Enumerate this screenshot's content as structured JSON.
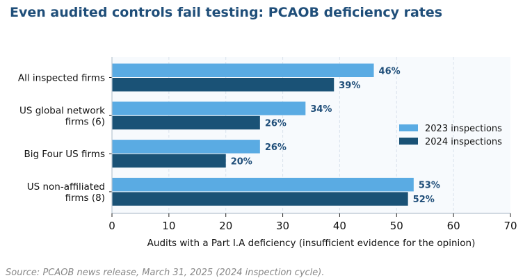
{
  "title": "Even audited controls fail testing: PCAOB deficiency rates",
  "source": "Source: PCAOB news release, March 31, 2025 (2024 inspection cycle).",
  "colors": {
    "title": "#1f4e79",
    "series_2023": "#5aabe3",
    "series_2024": "#1a5276",
    "value_label": "#1f4e79",
    "plot_bg": "#f7fafd",
    "grid": "#d9e2ec",
    "axis": "#b8c4d0",
    "source": "#888888"
  },
  "chart_data": {
    "type": "bar",
    "orientation": "horizontal",
    "categories": [
      [
        "All inspected firms"
      ],
      [
        "US global network",
        "firms (6)"
      ],
      [
        "Big Four US firms"
      ],
      [
        "US non-affiliated",
        "firms (8)"
      ]
    ],
    "series": [
      {
        "name": "2023 inspections",
        "values": [
          46,
          34,
          26,
          53
        ],
        "labels": [
          "46%",
          "34%",
          "26%",
          "53%"
        ]
      },
      {
        "name": "2024 inspections",
        "values": [
          39,
          26,
          20,
          52
        ],
        "labels": [
          "39%",
          "26%",
          "20%",
          "52%"
        ]
      }
    ],
    "xlabel": "Audits with a Part I.A deficiency (insufficient evidence for the opinion)",
    "xlim": [
      0,
      70
    ],
    "xticks": [
      0,
      10,
      20,
      30,
      40,
      50,
      60,
      70
    ],
    "grid": true,
    "legend": "center-right"
  }
}
